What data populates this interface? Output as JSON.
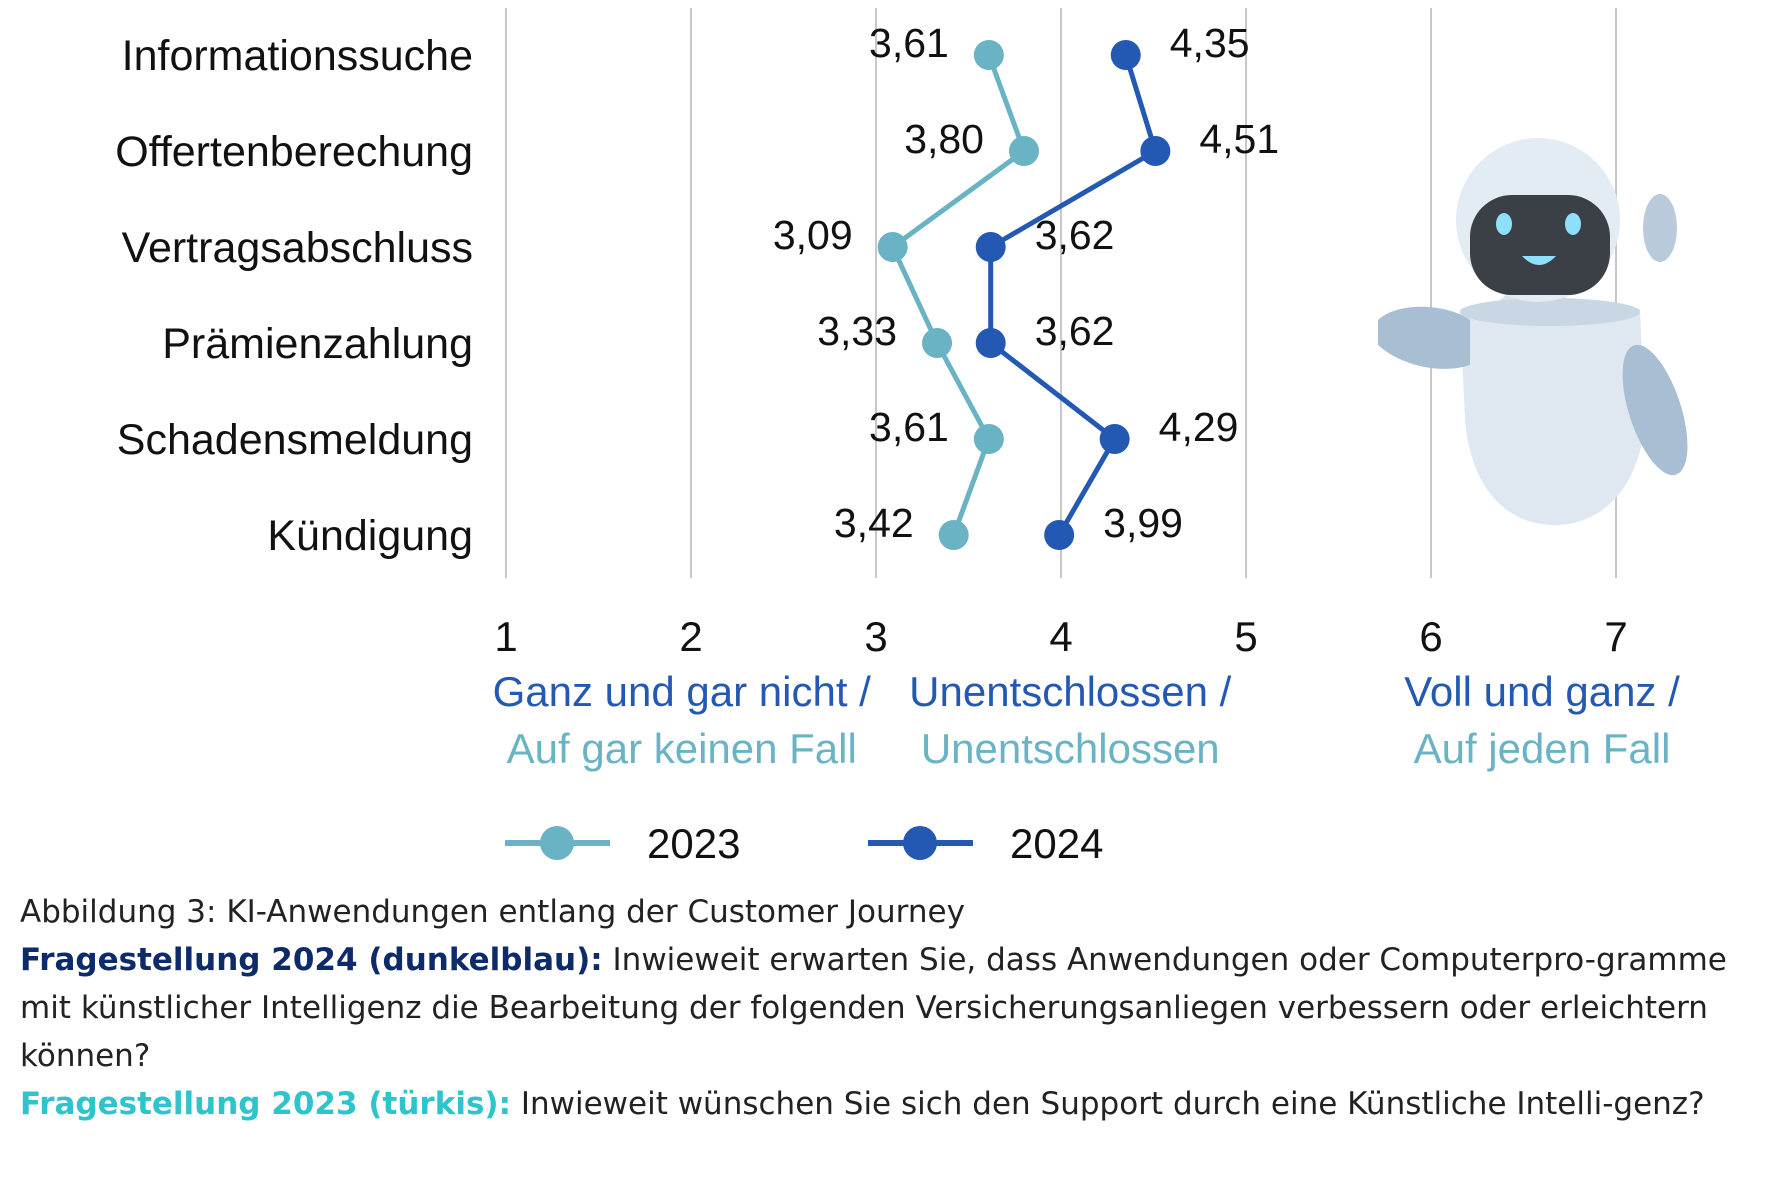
{
  "chart_data": {
    "type": "line",
    "orientation": "horizontal",
    "categories": [
      "Informationssuche",
      "Offertenberechung",
      "Vertragsabschluss",
      "Prämienzahlung",
      "Schadensmeldung",
      "Kündigung"
    ],
    "series": [
      {
        "name": "2023",
        "color": "#69b3c4",
        "values": [
          3.61,
          3.8,
          3.09,
          3.33,
          3.61,
          3.42
        ],
        "labels": [
          "3,61",
          "3,80",
          "3,09",
          "3,33",
          "3,61",
          "3,42"
        ]
      },
      {
        "name": "2024",
        "color": "#2459b3",
        "values": [
          4.35,
          4.51,
          3.62,
          3.62,
          4.29,
          3.99
        ],
        "labels": [
          "4,35",
          "4,51",
          "3,62",
          "3,62",
          "4,29",
          "3,99"
        ]
      }
    ],
    "xlim": [
      1,
      7
    ],
    "xticks": [
      "1",
      "2",
      "3",
      "4",
      "5",
      "6",
      "7"
    ],
    "grid": true,
    "legend": "bottom",
    "scale_labels": [
      {
        "line1": "Ganz und gar nicht /",
        "line2": "Auf gar keinen Fall"
      },
      {
        "line1": "Unentschlossen /",
        "line2": "Unentschlossen"
      },
      {
        "line1": "Voll und ganz /",
        "line2": "Auf jeden Fall"
      }
    ],
    "scale_colors": {
      "line1": "#2459b3",
      "line2": "#69b3c4"
    }
  },
  "caption": {
    "figure": "Abbildung 3: KI-Anwendungen entlang der Customer Journey",
    "q2024_label": "Fragestellung 2024 (dunkelblau):",
    "q2024_text": " Inwieweit erwarten Sie, dass Anwendungen oder Computerpro-gramme mit künstlicher Intelligenz die Bearbeitung der folgenden Versicherungsanliegen verbessern oder erleichtern können?",
    "q2023_label": "Fragestellung 2023 (türkis):",
    "q2023_text": " Inwieweit wünschen Sie sich den Support durch eine Künstliche Intelli-genz?"
  },
  "illustration": {
    "icon": "robot-icon"
  }
}
